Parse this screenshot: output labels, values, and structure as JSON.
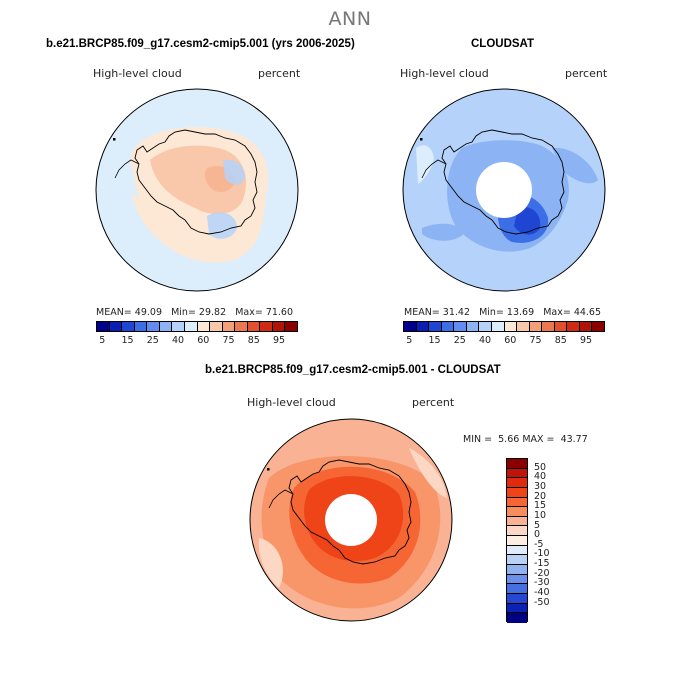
{
  "figure": {
    "season": "ANN"
  },
  "panels": {
    "model": {
      "title": "b.e21.BRCP85.f09_g17.cesm2-cmip5.001 (yrs 2006-2025)",
      "variable": "High-level cloud",
      "units": "percent",
      "stats": {
        "mean_label": "MEAN=",
        "mean": "49.09",
        "min_label": "Min=",
        "min": "29.82",
        "max_label": "Max=",
        "max": "71.60"
      }
    },
    "obs": {
      "title": "CLOUDSAT",
      "variable": "High-level cloud",
      "units": "percent",
      "stats": {
        "mean_label": "MEAN=",
        "mean": "31.42",
        "min_label": "Min=",
        "min": "13.69",
        "max_label": "Max=",
        "max": "44.65"
      }
    },
    "diff": {
      "title": "b.e21.BRCP85.f09_g17.cesm2-cmip5.001 - CLOUDSAT",
      "variable": "High-level cloud",
      "units": "percent",
      "stats": {
        "min_label": "MIN =",
        "min": "5.66",
        "max_label": "MAX =",
        "max": "43.77"
      }
    }
  },
  "colorbars": {
    "field": {
      "colors": [
        "#00008c",
        "#0a1eb4",
        "#1e46d2",
        "#3c6ee6",
        "#648cf0",
        "#8cb4f5",
        "#b4d2fa",
        "#dceefc",
        "#fde8d6",
        "#f9c8aa",
        "#f3a078",
        "#ec7850",
        "#e24f2d",
        "#cf2a12",
        "#b01408",
        "#8a0000"
      ],
      "tick_labels": [
        "5",
        "15",
        "25",
        "40",
        "60",
        "75",
        "85",
        "95"
      ]
    },
    "diff": {
      "colors": [
        "#8a0000",
        "#c0140a",
        "#e02a0e",
        "#ee4418",
        "#f56634",
        "#f78c5c",
        "#f9b394",
        "#fcd8c4",
        "#fdeee4",
        "#e0ecfb",
        "#b8d2f6",
        "#90b2ef",
        "#6a90ea",
        "#4570e2",
        "#2448d2",
        "#0c22b4",
        "#000082"
      ],
      "tick_labels": [
        "50",
        "40",
        "30",
        "20",
        "15",
        "10",
        "5",
        "0",
        "-5",
        "-10",
        "-15",
        "-20",
        "-30",
        "-40",
        "-50"
      ]
    }
  },
  "chart_data": [
    {
      "type": "heatmap",
      "title": "b.e21.BRCP85.f09_g17.cesm2-cmip5.001 (yrs 2006-2025)",
      "variable": "High-level cloud",
      "units": "percent",
      "projection": "south-polar-stereographic",
      "mean": 49.09,
      "min": 29.82,
      "max": 71.6,
      "contour_levels": [
        5,
        10,
        15,
        20,
        25,
        30,
        35,
        40,
        50,
        60,
        65,
        70,
        75,
        80,
        85,
        90,
        95
      ]
    },
    {
      "type": "heatmap",
      "title": "CLOUDSAT",
      "variable": "High-level cloud",
      "units": "percent",
      "projection": "south-polar-stereographic",
      "mean": 31.42,
      "min": 13.69,
      "max": 44.65,
      "contour_levels": [
        5,
        10,
        15,
        20,
        25,
        30,
        35,
        40,
        50,
        60,
        65,
        70,
        75,
        80,
        85,
        90,
        95
      ]
    },
    {
      "type": "heatmap",
      "title": "b.e21.BRCP85.f09_g17.cesm2-cmip5.001 - CLOUDSAT",
      "variable": "High-level cloud",
      "units": "percent",
      "projection": "south-polar-stereographic",
      "min": 5.66,
      "max": 43.77,
      "contour_levels": [
        -50,
        -40,
        -30,
        -20,
        -15,
        -10,
        -5,
        0,
        5,
        10,
        15,
        20,
        30,
        40,
        50
      ]
    }
  ]
}
